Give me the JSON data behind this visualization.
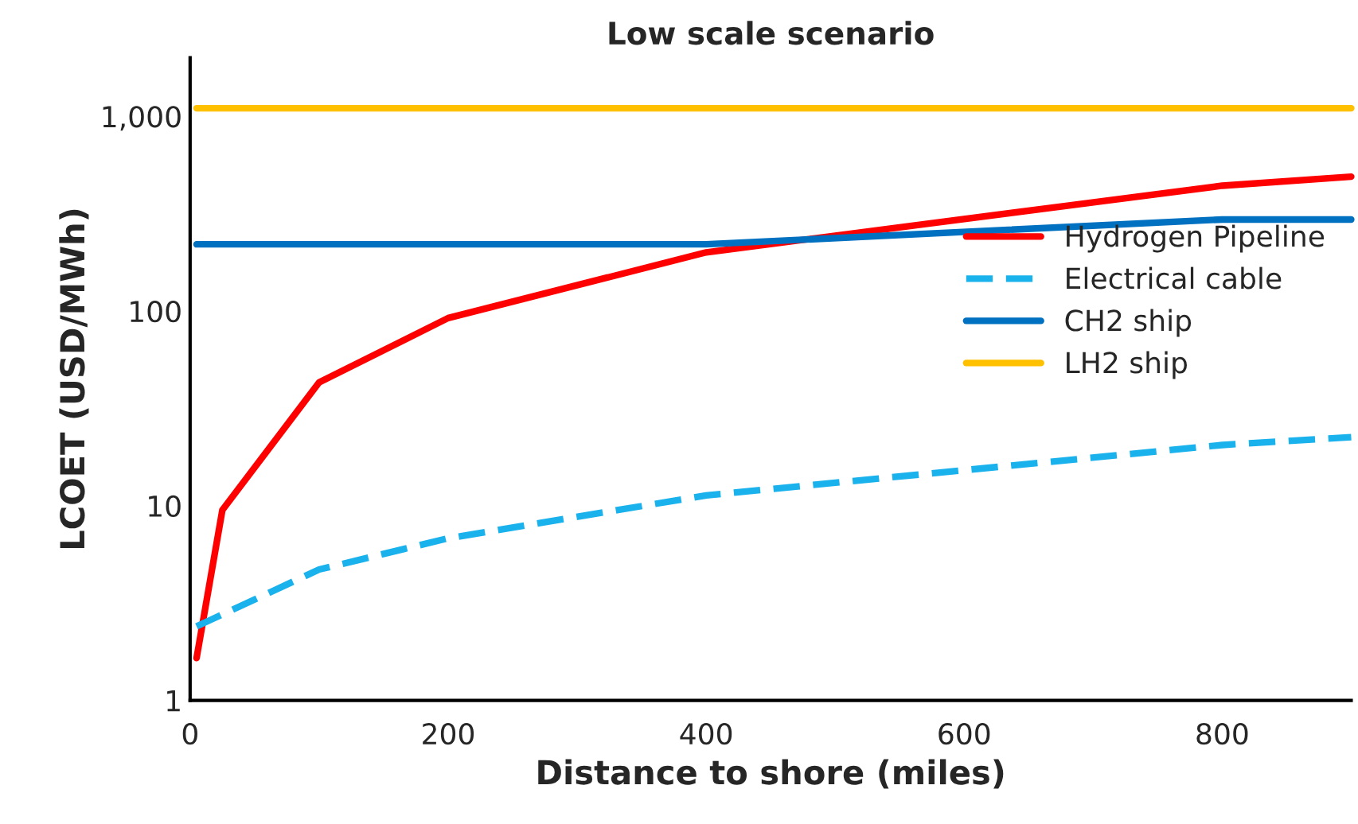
{
  "chart_data": {
    "type": "line",
    "title": "Low scale scenario",
    "xlabel": "Distance to shore (miles)",
    "ylabel": "LCOET (USD/MWh)",
    "log": "y",
    "grid": false,
    "legend": "right",
    "marker": "none",
    "xlim": [
      0,
      900
    ],
    "xticks": [
      0,
      200,
      400,
      600,
      800
    ],
    "ylim": [
      1,
      2000
    ],
    "yticks": [
      1,
      10,
      100,
      {
        "value": 1000,
        "label": "1,000"
      }
    ],
    "series": [
      {
        "name": "Hydrogen Pipeline",
        "color": "#ff0000",
        "line_style": "solid",
        "x": [
          5,
          25,
          100,
          200,
          400,
          800,
          900
        ],
        "values": [
          1.65,
          9.5,
          43,
          92,
          200,
          440,
          490
        ]
      },
      {
        "name": "Electrical cable",
        "color": "#1ab2ec",
        "line_style": "dashed",
        "x": [
          5,
          100,
          200,
          400,
          800,
          900
        ],
        "values": [
          2.4,
          4.7,
          6.8,
          11.3,
          20.5,
          22.5
        ]
      },
      {
        "name": "CH2 ship",
        "color": "#0070c0",
        "line_style": "solid",
        "x": [
          5,
          400,
          800,
          900
        ],
        "values": [
          220,
          220,
          295,
          295
        ]
      },
      {
        "name": "LH2 ship",
        "color": "#ffc000",
        "line_style": "solid",
        "x": [
          5,
          900
        ],
        "values": [
          1100,
          1100
        ]
      }
    ]
  }
}
